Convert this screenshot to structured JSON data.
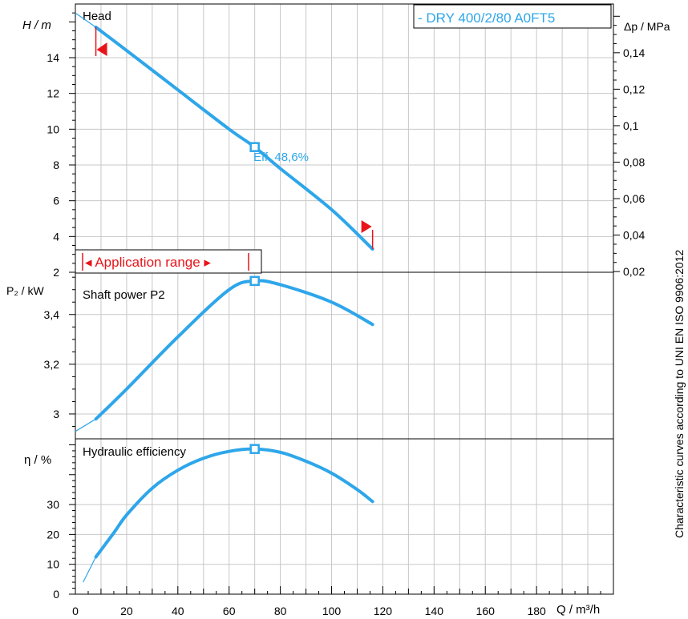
{
  "colors": {
    "curve": "#2ea6ea",
    "range": "#e8141a",
    "grid": "#c8c8c8"
  },
  "legend": "- DRY 400/2/80 A0FT5",
  "side_note": "Characteristic curves according to UNI EN ISO 9906:2012",
  "x_axis": {
    "label": "Q / m³/h",
    "ticks": [
      "0",
      "20",
      "40",
      "60",
      "80",
      "100",
      "120",
      "140",
      "160",
      "180"
    ],
    "range": [
      0,
      210
    ]
  },
  "head_panel": {
    "title": "Head",
    "y_label_left": "H / m",
    "y_label_right": "Δp / MPa",
    "left_ticks": [
      "2",
      "4",
      "6",
      "8",
      "10",
      "12",
      "14"
    ],
    "right_ticks": [
      "0,02",
      "0,04",
      "0,06",
      "0,08",
      "0,1",
      "0,12",
      "0,14"
    ],
    "eff_label": "Eff.  48,6%",
    "application_range": "◂ Application range ▸"
  },
  "power_panel": {
    "title": "Shaft power P2",
    "y_label": "P₂ / kW",
    "ticks": [
      "3",
      "3,2",
      "3,4"
    ]
  },
  "eff_panel": {
    "title": "Hydraulic efficiency",
    "y_label": "η / %",
    "ticks": [
      "0",
      "10",
      "20",
      "30"
    ]
  },
  "chart_data": [
    {
      "type": "line",
      "title": "Head",
      "xlabel": "Q / m³/h",
      "ylabel": "H / m",
      "ylim": [
        2,
        17
      ],
      "xlim": [
        0,
        210
      ],
      "series": [
        {
          "name": "- DRY 400/2/80 A0FT5",
          "x": [
            8,
            20,
            40,
            60,
            70,
            80,
            100,
            116
          ],
          "y": [
            15.7,
            14.4,
            12.2,
            10.0,
            9.0,
            7.8,
            5.5,
            3.3
          ]
        }
      ],
      "extension": {
        "x": [
          0,
          8
        ],
        "y": [
          16.5,
          15.7
        ]
      },
      "duty_point": {
        "x": 70,
        "y": 9.0
      },
      "application_range": [
        8,
        116
      ]
    },
    {
      "type": "line",
      "title": "Shaft power P2",
      "xlabel": "Q / m³/h",
      "ylabel": "P₂ / kW",
      "ylim": [
        2.9,
        3.57
      ],
      "series": [
        {
          "name": "Shaft power P2",
          "x": [
            8,
            20,
            40,
            60,
            70,
            80,
            100,
            116
          ],
          "y": [
            2.98,
            3.1,
            3.31,
            3.5,
            3.535,
            3.52,
            3.45,
            3.36
          ]
        }
      ],
      "extension": {
        "x": [
          0,
          8
        ],
        "y": [
          2.93,
          2.98
        ]
      },
      "duty_point": {
        "x": 70,
        "y": 3.535
      }
    },
    {
      "type": "line",
      "title": "Hydraulic efficiency",
      "xlabel": "Q / m³/h",
      "ylabel": "η / %",
      "ylim": [
        0,
        52
      ],
      "series": [
        {
          "name": "Hydraulic efficiency",
          "x": [
            8,
            15,
            20,
            30,
            40,
            50,
            60,
            70,
            80,
            90,
            100,
            110,
            116
          ],
          "y": [
            12.5,
            20.5,
            26.5,
            35.5,
            41.5,
            45.5,
            47.8,
            48.6,
            47.5,
            44.5,
            40.5,
            35.0,
            31.0
          ]
        }
      ],
      "extension": {
        "x": [
          3,
          8
        ],
        "y": [
          4,
          12.5
        ]
      },
      "duty_point": {
        "x": 70,
        "y": 48.6
      }
    }
  ]
}
